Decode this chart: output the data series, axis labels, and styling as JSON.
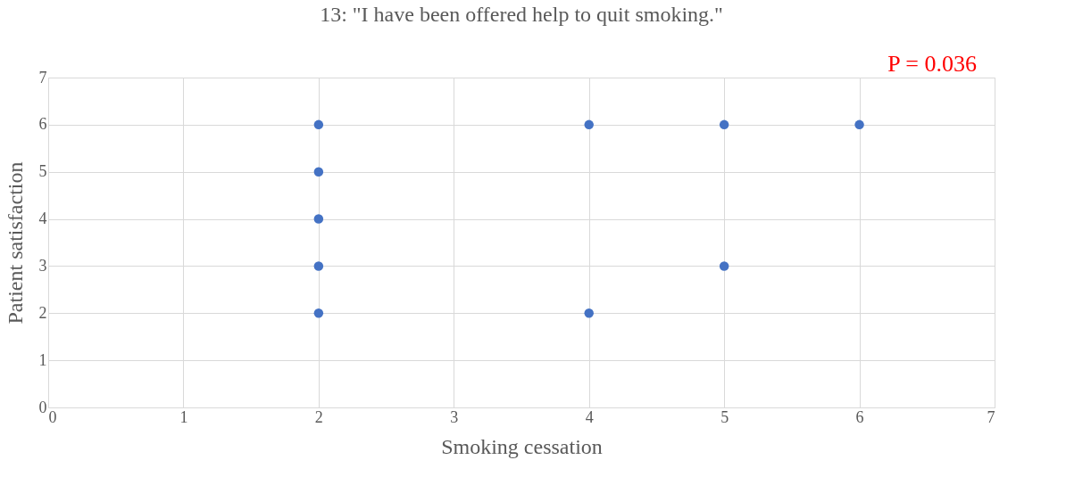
{
  "chart_data": {
    "type": "scatter",
    "title": "13: \"I have been offered help to quit smoking.\"",
    "xlabel": "Smoking cessation",
    "ylabel": "Patient satisfaction",
    "x": [
      2,
      2,
      2,
      2,
      2,
      4,
      4,
      5,
      5,
      6
    ],
    "series": [
      {
        "color": "#4472c4",
        "values": [
          6,
          5,
          4,
          3,
          2,
          6,
          2,
          6,
          3,
          6
        ]
      }
    ],
    "xlim": [
      0,
      7
    ],
    "xticks": [
      0,
      1,
      2,
      3,
      4,
      5,
      6,
      7
    ],
    "ylim": [
      0,
      7
    ],
    "yticks": [
      0,
      1,
      2,
      3,
      4,
      5,
      6,
      7
    ],
    "grid": true,
    "marker": "circle",
    "annotations": [
      "P = 0.036"
    ]
  }
}
